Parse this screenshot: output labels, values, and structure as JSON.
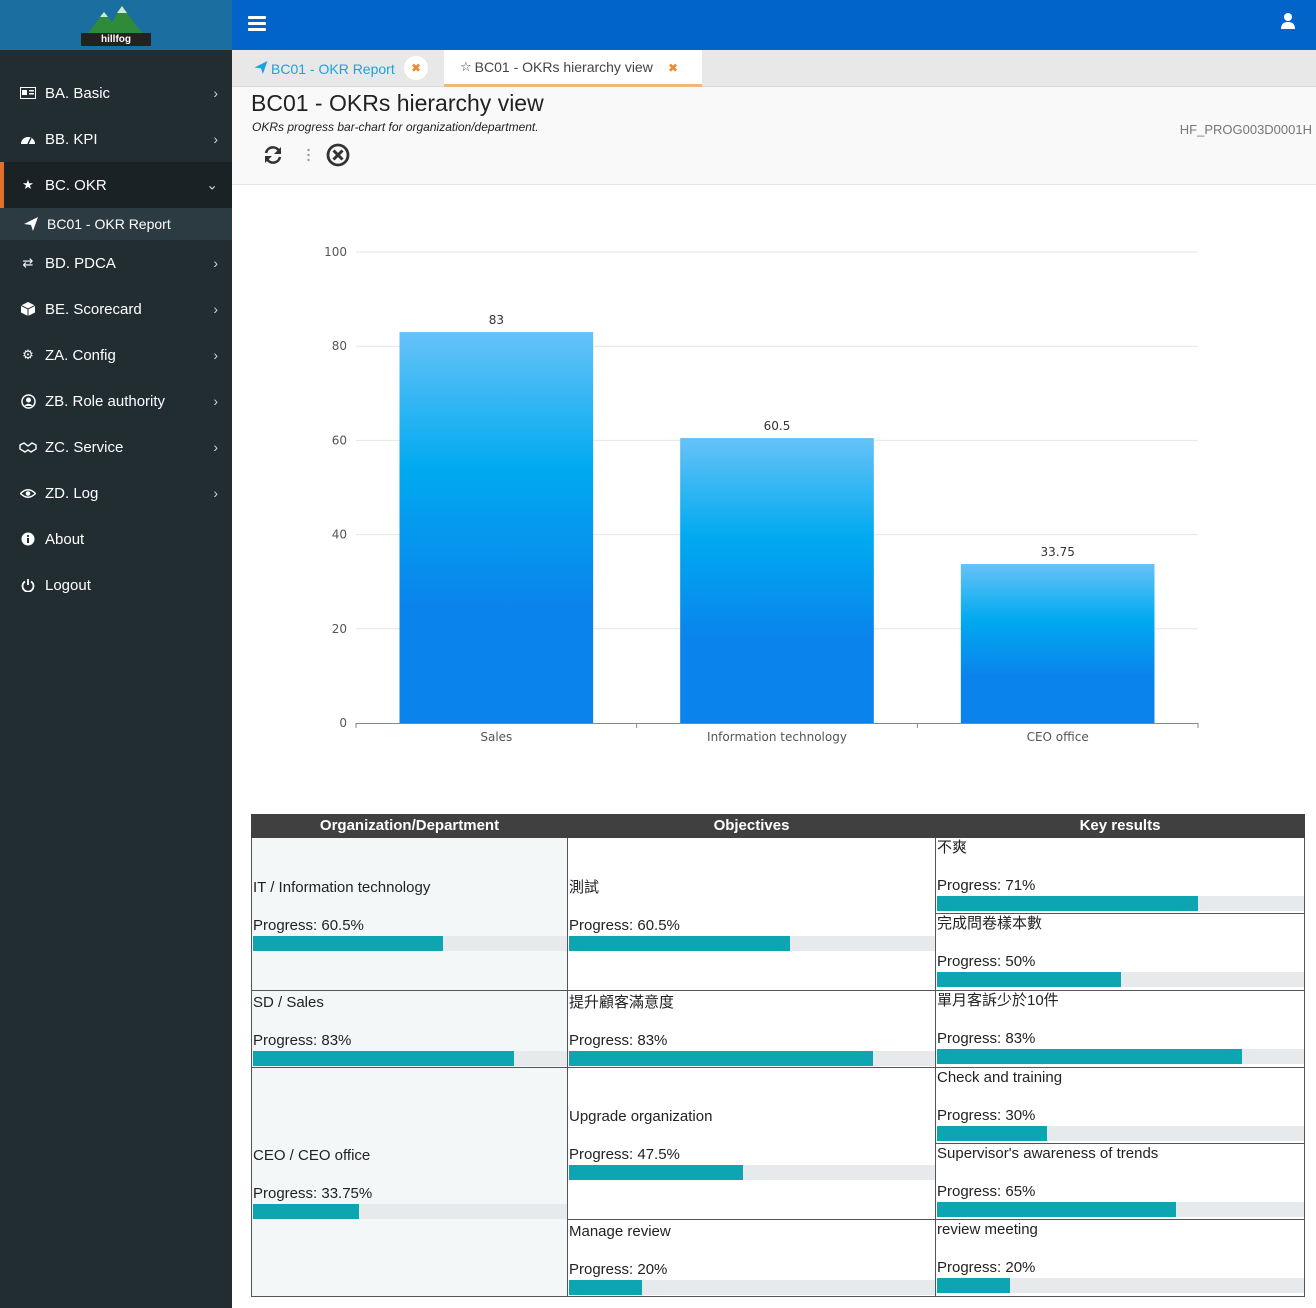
{
  "sidebar": {
    "logo_text": "hillfog",
    "items": [
      {
        "label": "BA. Basic",
        "icon": "card-icon"
      },
      {
        "label": "BB. KPI",
        "icon": "dashboard-icon"
      },
      {
        "label": "BC. OKR",
        "icon": "star-icon",
        "expanded": true
      },
      {
        "label": "BD. PDCA",
        "icon": "exchange-icon"
      },
      {
        "label": "BE. Scorecard",
        "icon": "cube-icon"
      },
      {
        "label": "ZA. Config",
        "icon": "gear-icon"
      },
      {
        "label": "ZB. Role authority",
        "icon": "user-circle-icon"
      },
      {
        "label": "ZC. Service",
        "icon": "handshake-icon"
      },
      {
        "label": "ZD. Log",
        "icon": "eye-icon"
      },
      {
        "label": "About",
        "icon": "info-icon"
      },
      {
        "label": "Logout",
        "icon": "power-icon"
      }
    ],
    "submenu": {
      "label": "BC01 - OKR Report",
      "icon": "paper-plane-icon"
    }
  },
  "tabs": [
    {
      "label": "BC01 - OKR Report",
      "icon": "paper-plane-icon"
    },
    {
      "label": "BC01 - OKRs hierarchy view",
      "icon": "star-outline-icon"
    }
  ],
  "header": {
    "title": "BC01 - OKRs hierarchy view",
    "subtitle": "OKRs progress bar-chart for organization/department.",
    "program_id": "HF_PROG003D0001H"
  },
  "chart_data": {
    "type": "bar",
    "categories": [
      "Sales",
      "Information technology",
      "CEO office"
    ],
    "values": [
      83,
      60.5,
      33.75
    ],
    "value_labels": [
      "83",
      "60.5",
      "33.75"
    ],
    "ylim": [
      0,
      100
    ],
    "yticks": [
      0,
      20,
      40,
      60,
      80,
      100
    ],
    "grid": true,
    "colors": {
      "top": "#66c2f7",
      "mid": "#00aaf0",
      "bottom": "#0a84ec"
    }
  },
  "table": {
    "headers": [
      "Organization/Department",
      "Objectives",
      "Key results"
    ],
    "progress_prefix": "Progress: ",
    "rows": [
      {
        "org": {
          "name": "IT / Information technology",
          "progress_text": "Progress: 60.5%",
          "progress": 60.5
        },
        "objectives": [
          {
            "name": "測試",
            "progress_text": "Progress: 60.5%",
            "progress": 60.5,
            "key_results": [
              {
                "name": "不爽",
                "progress_text": "Progress: 71%",
                "progress": 71
              },
              {
                "name": "完成問卷樣本數",
                "progress_text": "Progress: 50%",
                "progress": 50
              }
            ]
          }
        ]
      },
      {
        "org": {
          "name": "SD / Sales",
          "progress_text": "Progress: 83%",
          "progress": 83
        },
        "objectives": [
          {
            "name": "提升顧客滿意度",
            "progress_text": "Progress: 83%",
            "progress": 83,
            "key_results": [
              {
                "name": "單月客訴少於10件",
                "progress_text": "Progress: 83%",
                "progress": 83
              }
            ]
          }
        ]
      },
      {
        "org": {
          "name": "CEO / CEO office",
          "progress_text": "Progress: 33.75%",
          "progress": 33.75
        },
        "objectives": [
          {
            "name": "Upgrade organization",
            "progress_text": "Progress: 47.5%",
            "progress": 47.5,
            "key_results": [
              {
                "name": "Check and training",
                "progress_text": "Progress: 30%",
                "progress": 30
              },
              {
                "name": "Supervisor's awareness of trends",
                "progress_text": "Progress: 65%",
                "progress": 65
              }
            ]
          },
          {
            "name": "Manage review",
            "progress_text": "Progress: 20%",
            "progress": 20,
            "key_results": [
              {
                "name": "review meeting",
                "progress_text": "Progress: 20%",
                "progress": 20
              }
            ]
          }
        ]
      }
    ]
  }
}
